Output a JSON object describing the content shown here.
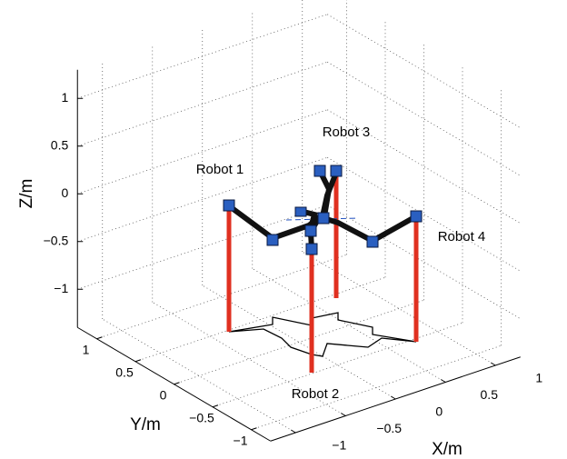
{
  "chart_data": {
    "type": "line3d",
    "xlabel": "X/m",
    "ylabel": "Y/m",
    "zlabel": "Z/m",
    "xlim": [
      -1.25,
      1.25
    ],
    "ylim": [
      -1.25,
      1.25
    ],
    "zlim": [
      -1.4,
      1.3
    ],
    "xticks": [
      {
        "value": -1,
        "label": "−1"
      },
      {
        "value": -0.5,
        "label": "−0.5"
      },
      0,
      0.5,
      1
    ],
    "yticks": [
      {
        "value": -1,
        "label": "−1"
      },
      {
        "value": -0.5,
        "label": "−0.5"
      },
      0,
      0.5,
      1
    ],
    "zticks": [
      {
        "value": -1,
        "label": "−1"
      },
      {
        "value": -0.5,
        "label": "−0.5"
      },
      0,
      0.5,
      1
    ],
    "grid": true,
    "annotations": [
      "Robot 1",
      "Robot 2",
      "Robot 3",
      "Robot 4"
    ]
  }
}
